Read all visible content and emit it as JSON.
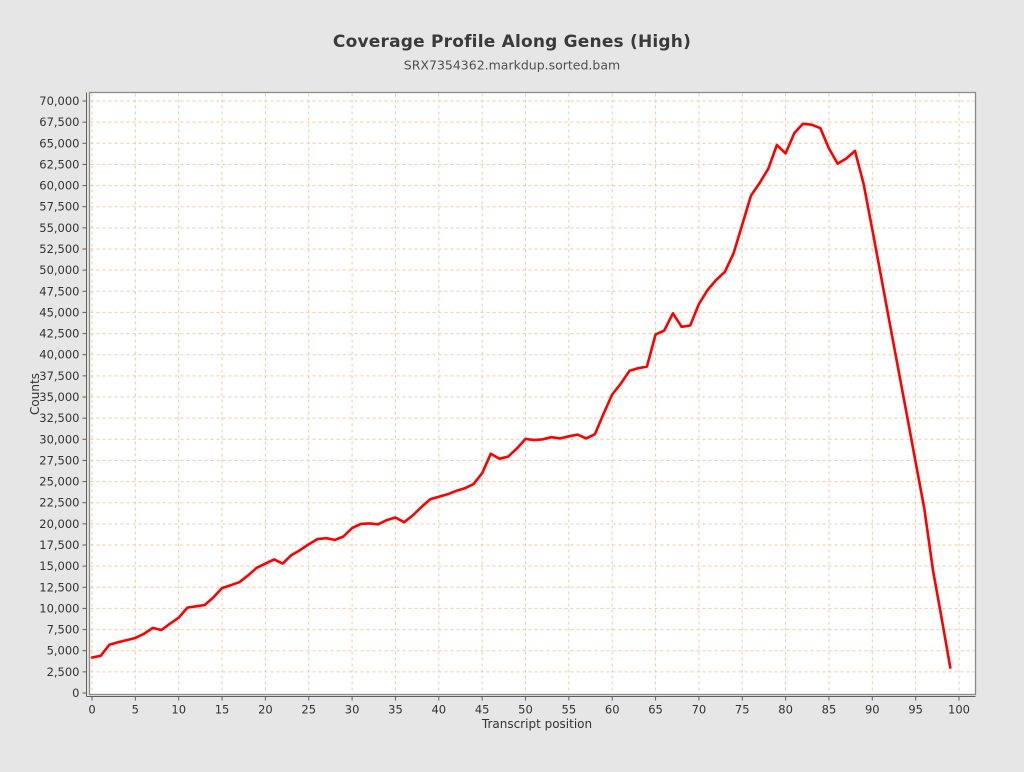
{
  "chart_data": {
    "type": "line",
    "title": "Coverage Profile Along Genes (High)",
    "subtitle": "SRX7354362.markdup.sorted.bam",
    "xlabel": "Transcript position",
    "ylabel": "Counts",
    "xlim": [
      0,
      100
    ],
    "ylim": [
      0,
      70000
    ],
    "x_tick_step": 5,
    "y_tick_step": 2500,
    "grid": "dashed",
    "legend_position": "none",
    "colors": {
      "background": "#e6e6e6",
      "plot_background": "#ffffff",
      "grid": "#f5c9a2",
      "line": "#fe0000",
      "frame": "#8c8c8c",
      "axis": "#5f5f5f",
      "tick_text": "#333333"
    },
    "series": [
      {
        "name": "coverage",
        "x_is_index": true,
        "values": [
          4200,
          4400,
          5700,
          6000,
          6250,
          6500,
          7000,
          7700,
          7450,
          8200,
          8900,
          10100,
          10250,
          10400,
          11300,
          12400,
          12750,
          13100,
          13900,
          14800,
          15300,
          15800,
          15300,
          16300,
          16900,
          17600,
          18200,
          18300,
          18100,
          18500,
          19500,
          20000,
          20050,
          19950,
          20450,
          20750,
          20200,
          21000,
          22000,
          22900,
          23200,
          23500,
          23900,
          24200,
          24700,
          26000,
          28300,
          27700,
          27950,
          28900,
          30050,
          29900,
          30000,
          30250,
          30100,
          30350,
          30550,
          30100,
          30600,
          33000,
          35300,
          36600,
          38100,
          38400,
          38600,
          42400,
          42850,
          44900,
          43300,
          43450,
          46000,
          47650,
          48850,
          49800,
          52000,
          55400,
          58800,
          60300,
          62000,
          64800,
          63800,
          66200,
          67300,
          67200,
          66800,
          64400,
          62600,
          63200,
          64100,
          60200,
          54800,
          49300,
          43800,
          38300,
          32800,
          27300,
          21800,
          14500,
          8800,
          3000
        ]
      }
    ],
    "x_ticks": [
      "0",
      "5",
      "10",
      "15",
      "20",
      "25",
      "30",
      "35",
      "40",
      "45",
      "50",
      "55",
      "60",
      "65",
      "70",
      "75",
      "80",
      "85",
      "90",
      "95",
      "100"
    ],
    "y_ticks": [
      "0",
      "2,500",
      "5,000",
      "7,500",
      "10,000",
      "12,500",
      "15,000",
      "17,500",
      "20,000",
      "22,500",
      "25,000",
      "27,500",
      "30,000",
      "32,500",
      "35,000",
      "37,500",
      "40,000",
      "42,500",
      "45,000",
      "47,500",
      "50,000",
      "52,500",
      "55,000",
      "57,500",
      "60,000",
      "62,500",
      "65,000",
      "67,500",
      "70,000"
    ]
  }
}
